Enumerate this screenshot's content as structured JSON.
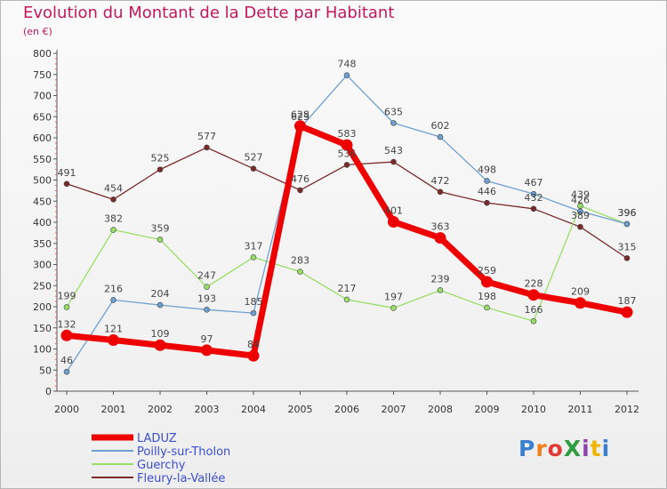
{
  "title": "Evolution du Montant de la Dette par Habitant",
  "subtitle": "(en €)",
  "logo": {
    "text": "ProXiti",
    "colors": [
      "#3a7fd0",
      "#f07f1a",
      "#e53935",
      "#2e9e3e",
      "#8e44ad",
      "#f2b600",
      "#3a7fd0"
    ]
  },
  "chart_data": {
    "type": "line",
    "x": [
      "2000",
      "2001",
      "2002",
      "2003",
      "2004",
      "2005",
      "2006",
      "2007",
      "2008",
      "2009",
      "2010",
      "2011",
      "2012"
    ],
    "ylim": [
      0,
      800
    ],
    "yticks": [
      "0",
      "50",
      "100",
      "150",
      "200",
      "250",
      "300",
      "350",
      "400",
      "450",
      "500",
      "550",
      "600",
      "650",
      "700",
      "750",
      "800"
    ],
    "grid": false,
    "legend": "bottom-left",
    "series": [
      {
        "name": "LADUZ",
        "color": "#ee0000",
        "values": [
          132,
          121,
          109,
          97,
          84,
          628,
          583,
          401,
          363,
          259,
          228,
          209,
          187
        ],
        "labels": [
          "132",
          "121",
          "109",
          "97",
          "84",
          "628",
          "583",
          "401",
          "363",
          "259",
          "228",
          "209",
          "187"
        ]
      },
      {
        "name": "Poilly-sur-Tholon",
        "color": "#6ea0cf",
        "values": [
          46,
          216,
          204,
          193,
          185,
          623,
          748,
          635,
          602,
          498,
          467,
          426,
          396
        ],
        "labels": [
          "46",
          "216",
          "204",
          "193",
          "185",
          "623",
          "748",
          "635",
          "602",
          "498",
          "467",
          "426",
          "396"
        ]
      },
      {
        "name": "Guerchy",
        "color": "#99dd66",
        "values": [
          199,
          382,
          359,
          247,
          317,
          283,
          217,
          197,
          239,
          198,
          166,
          439,
          396
        ],
        "labels": [
          "199",
          "382",
          "359",
          "247",
          "317",
          "283",
          "217",
          "197",
          "239",
          "198",
          "166",
          "439",
          "396"
        ]
      },
      {
        "name": "Fleury-la-Vallée",
        "color": "#7a2a2a",
        "values": [
          491,
          454,
          525,
          577,
          527,
          476,
          536,
          543,
          472,
          446,
          432,
          389,
          315
        ],
        "labels": [
          "491",
          "454",
          "525",
          "577",
          "527",
          "476",
          "536",
          "543",
          "472",
          "446",
          "432",
          "389",
          "315"
        ]
      }
    ]
  }
}
